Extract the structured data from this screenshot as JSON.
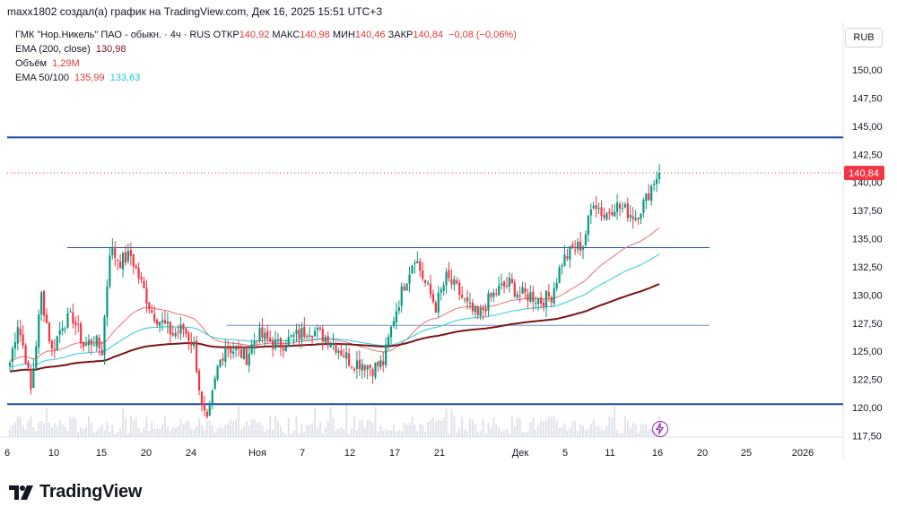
{
  "header": {
    "attribution": "maxx1802 создал(а) график на TradingView.com, Дек 16, 2025 15:51 UTC+3"
  },
  "legend": {
    "symbol": "ГМК \"Нор.Никель\" ПАО - обыкн. · 4ч · RUS",
    "open_label": "ОТКР",
    "open": "140,92",
    "high_label": "МАКС",
    "high": "140,98",
    "low_label": "МИН",
    "low": "140,46",
    "close_label": "ЗАКР",
    "close": "140,84",
    "change": "−0,08 (−0,06%)",
    "ema200_label": "EMA (200, close)",
    "ema200": "130,98",
    "volume_label": "Объём",
    "volume": "1,29M",
    "ema50100_label": "EMA 50/100",
    "ema50": "135,99",
    "ema100": "133,63"
  },
  "currency_button": "RUB",
  "logo_text": "TradingView",
  "colors": {
    "up": "#089981",
    "down": "#f23645",
    "ema50": "#e57373",
    "ema100": "#4dd0e1",
    "ema200": "#7b1416",
    "hline": "#1e4ca8",
    "price_badge": "#f23645"
  },
  "chart_data": {
    "type": "candlestick",
    "title": "ГМК \"Нор.Никель\" ПАО - обыкн. · 4ч · RUS",
    "ylim": [
      116.5,
      152.5
    ],
    "y_ticks": [
      "117,50",
      "120,00",
      "122,50",
      "125,00",
      "127,50",
      "130,00",
      "132,50",
      "135,00",
      "137,50",
      "140,00",
      "142,50",
      "145,00",
      "147,50",
      "150,00"
    ],
    "x_ticks": [
      "6",
      "10",
      "15",
      "20",
      "24",
      "Ноя",
      "7",
      "12",
      "17",
      "21",
      "Дек",
      "5",
      "11",
      "16",
      "20",
      "25",
      "2026"
    ],
    "last_price": "140,84",
    "horizontal_lines": [
      {
        "value": 144.0,
        "style": "thick"
      },
      {
        "value": 120.3,
        "style": "thick"
      },
      {
        "value": 134.2,
        "style": "thin",
        "from": "10",
        "to": "20-Dec"
      },
      {
        "value": 127.3,
        "style": "thin",
        "from": "Oct-29",
        "to": "20-Dec"
      }
    ],
    "close_anchors": [
      [
        0,
        124.0
      ],
      [
        3,
        127.5
      ],
      [
        6,
        124.5
      ],
      [
        8,
        121.5
      ],
      [
        12,
        130.0
      ],
      [
        16,
        125.0
      ],
      [
        20,
        127.5
      ],
      [
        24,
        128.0
      ],
      [
        28,
        125.5
      ],
      [
        32,
        126.0
      ],
      [
        35,
        125.0
      ],
      [
        38,
        134.0
      ],
      [
        42,
        133.0
      ],
      [
        46,
        133.5
      ],
      [
        50,
        131.0
      ],
      [
        54,
        128.5
      ],
      [
        58,
        127.5
      ],
      [
        62,
        126.5
      ],
      [
        66,
        127.0
      ],
      [
        70,
        125.5
      ],
      [
        73,
        120.0
      ],
      [
        75,
        118.5
      ],
      [
        79,
        123.5
      ],
      [
        82,
        125.5
      ],
      [
        86,
        125.0
      ],
      [
        90,
        124.5
      ],
      [
        94,
        126.5
      ],
      [
        98,
        126.0
      ],
      [
        102,
        125.5
      ],
      [
        106,
        126.0
      ],
      [
        110,
        126.5
      ],
      [
        114,
        127.0
      ],
      [
        118,
        126.5
      ],
      [
        122,
        126.0
      ],
      [
        126,
        125.0
      ],
      [
        130,
        124.0
      ],
      [
        134,
        124.0
      ],
      [
        138,
        123.5
      ],
      [
        142,
        124.0
      ],
      [
        146,
        128.0
      ],
      [
        150,
        131.0
      ],
      [
        154,
        133.5
      ],
      [
        158,
        131.0
      ],
      [
        162,
        129.0
      ],
      [
        166,
        131.5
      ],
      [
        170,
        130.5
      ],
      [
        174,
        129.0
      ],
      [
        178,
        128.0
      ],
      [
        182,
        129.5
      ],
      [
        186,
        130.5
      ],
      [
        190,
        131.0
      ],
      [
        194,
        130.0
      ],
      [
        198,
        130.0
      ],
      [
        202,
        129.5
      ],
      [
        206,
        130.0
      ],
      [
        210,
        133.0
      ],
      [
        214,
        134.0
      ],
      [
        218,
        134.5
      ],
      [
        222,
        138.5
      ],
      [
        226,
        137.0
      ],
      [
        230,
        138.0
      ],
      [
        234,
        137.5
      ],
      [
        238,
        137.0
      ],
      [
        242,
        138.5
      ],
      [
        245,
        140.2
      ],
      [
        247,
        140.84
      ]
    ],
    "ema50_end": 135.99,
    "ema100_end": 133.63,
    "ema200_end": 130.98
  }
}
